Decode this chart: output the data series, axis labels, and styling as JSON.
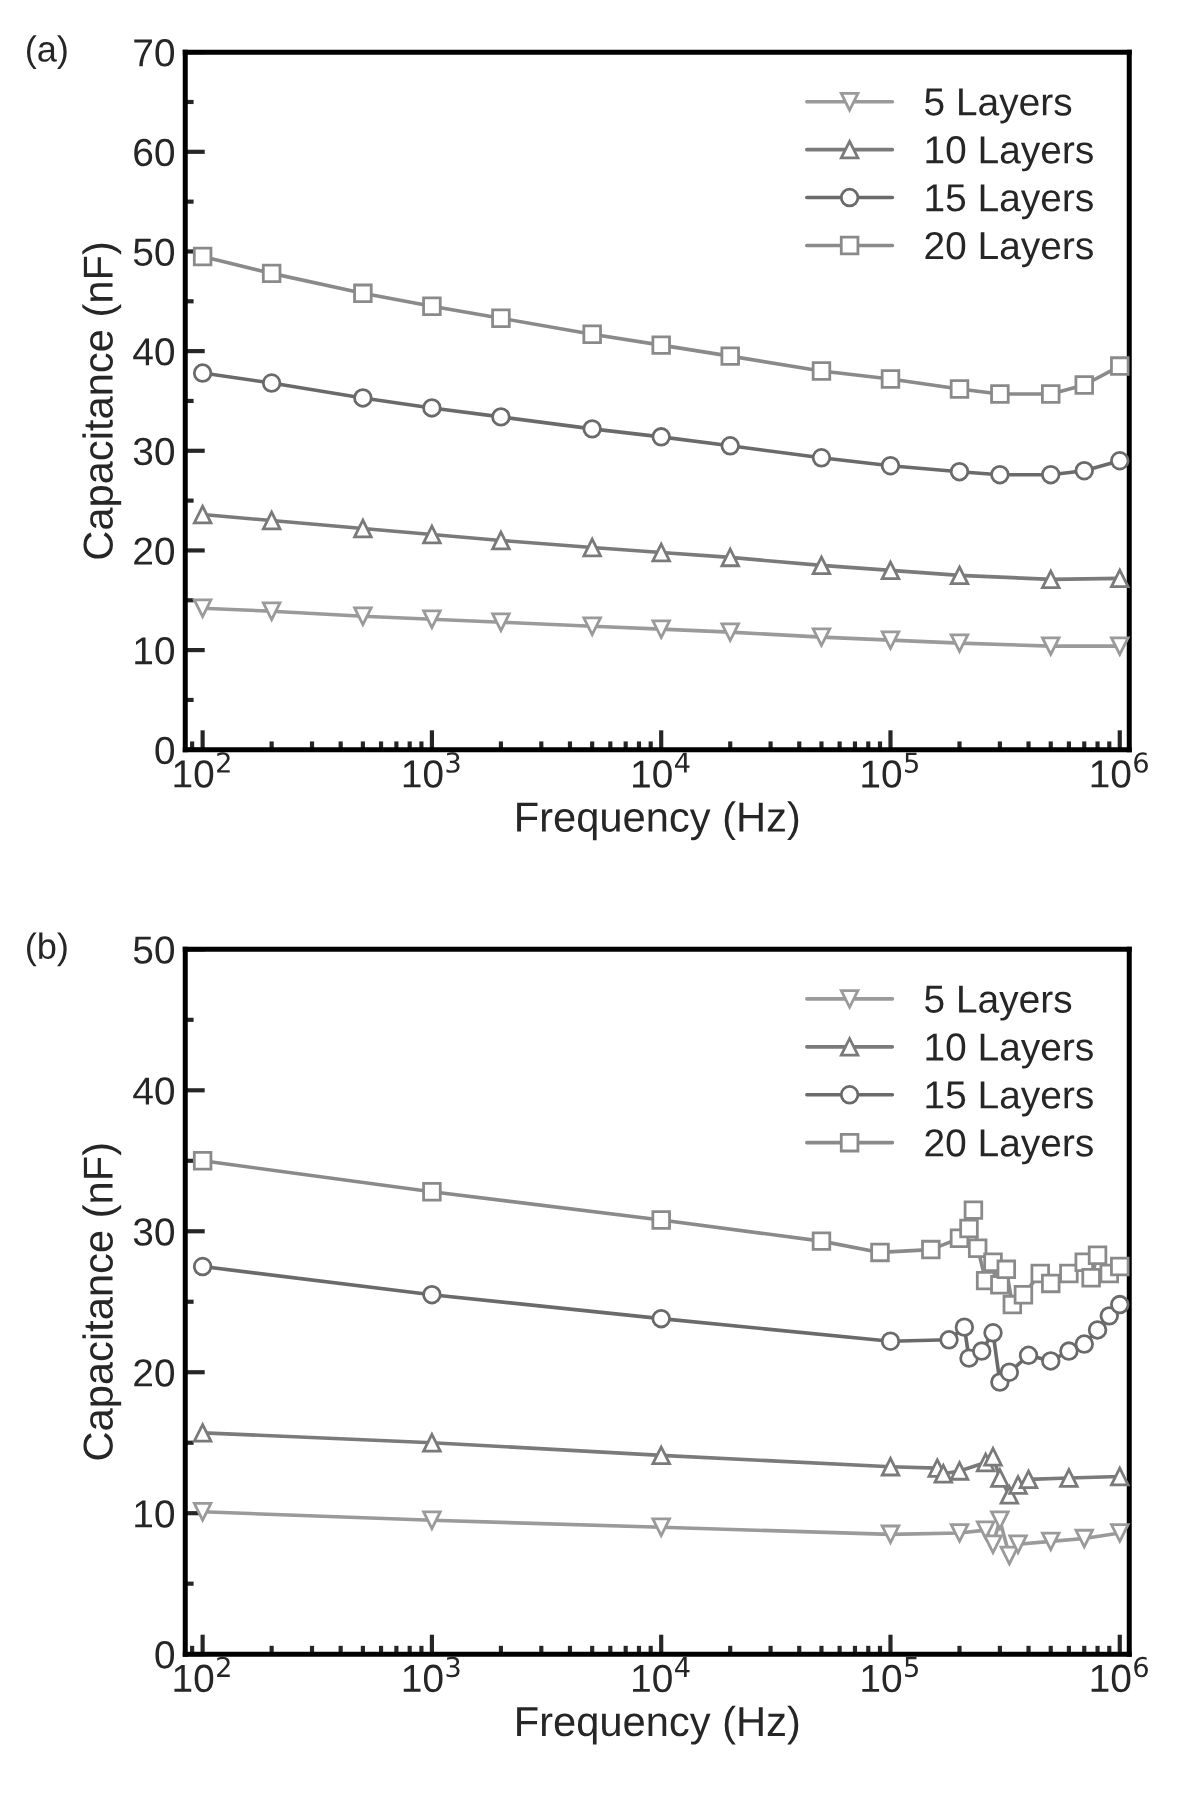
{
  "chart_data": [
    {
      "type": "line",
      "xlabel": "Frequency (Hz)",
      "ylabel": "Capacitance (nF)",
      "annotations": [
        "(a)"
      ],
      "log": "x",
      "xlim": [
        84,
        1100000
      ],
      "ylim": [
        0,
        70
      ],
      "xticks": [
        {
          "value": 100,
          "label": "10$^{2}$"
        },
        {
          "value": 1000,
          "label": "10$^{3}$"
        },
        {
          "value": 10000,
          "label": "10$^{4}$"
        },
        {
          "value": 100000,
          "label": "10$^{5}$"
        },
        {
          "value": 1000000,
          "label": "10$^{6}$"
        }
      ],
      "yticks": [
        0,
        10,
        20,
        30,
        40,
        50,
        60,
        70
      ],
      "legend": "top right",
      "grid": false,
      "series": [
        {
          "name": "5 Layers",
          "color": "#9a9a9a",
          "marker": "triangle_down",
          "x": [
            100,
            200,
            500,
            1000,
            2000,
            5000,
            10000,
            20000,
            50000,
            100000,
            200000,
            500000,
            1000000
          ],
          "values": [
            14.2,
            13.9,
            13.4,
            13.1,
            12.8,
            12.4,
            12.1,
            11.8,
            11.3,
            11,
            10.7,
            10.4,
            10.4
          ]
        },
        {
          "name": "10 Layers",
          "color": "#7a7a7a",
          "marker": "triangle",
          "x": [
            100,
            200,
            500,
            1000,
            2000,
            5000,
            10000,
            20000,
            50000,
            100000,
            200000,
            500000,
            1000000
          ],
          "values": [
            23.6,
            23,
            22.2,
            21.6,
            21,
            20.3,
            19.8,
            19.3,
            18.5,
            18,
            17.5,
            17.1,
            17.2
          ]
        },
        {
          "name": "15 Layers",
          "color": "#6a6a6a",
          "marker": "circle",
          "x": [
            100,
            200,
            500,
            1000,
            2000,
            5000,
            10000,
            20000,
            50000,
            100000,
            200000,
            300000,
            500000,
            700000,
            1000000
          ],
          "values": [
            37.8,
            36.8,
            35.3,
            34.3,
            33.4,
            32.2,
            31.4,
            30.5,
            29.3,
            28.5,
            27.9,
            27.6,
            27.6,
            28,
            29
          ]
        },
        {
          "name": "20 Layers",
          "color": "#8a8a8a",
          "marker": "square",
          "x": [
            100,
            200,
            500,
            1000,
            2000,
            5000,
            10000,
            20000,
            50000,
            100000,
            200000,
            300000,
            500000,
            700000,
            1000000
          ],
          "values": [
            49.5,
            47.8,
            45.8,
            44.5,
            43.3,
            41.7,
            40.6,
            39.5,
            38,
            37.2,
            36.2,
            35.7,
            35.7,
            36.6,
            38.5
          ]
        }
      ]
    },
    {
      "type": "line",
      "xlabel": "Frequency (Hz)",
      "ylabel": "Capacitance (nF)",
      "annotations": [
        "(b)"
      ],
      "log": "x",
      "xlim": [
        84,
        1100000
      ],
      "ylim": [
        0,
        50
      ],
      "xticks": [
        {
          "value": 100,
          "label": "10$^{2}$"
        },
        {
          "value": 1000,
          "label": "10$^{3}$"
        },
        {
          "value": 10000,
          "label": "10$^{4}$"
        },
        {
          "value": 100000,
          "label": "10$^{5}$"
        },
        {
          "value": 1000000,
          "label": "10$^{6}$"
        }
      ],
      "yticks": [
        0,
        10,
        20,
        30,
        40,
        50
      ],
      "legend": "top right",
      "grid": false,
      "series": [
        {
          "name": "5 Layers",
          "color": "#9a9a9a",
          "marker": "triangle_down",
          "x": [
            100,
            1000,
            10000,
            100000,
            200000,
            260000,
            280000,
            300000,
            330000,
            360000,
            500000,
            700000,
            1000000
          ],
          "values": [
            10.1,
            9.5,
            9,
            8.5,
            8.6,
            8.8,
            7.8,
            9.5,
            7,
            7.8,
            8,
            8.2,
            8.6
          ]
        },
        {
          "name": "10 Layers",
          "color": "#7a7a7a",
          "marker": "triangle",
          "x": [
            100,
            1000,
            10000,
            100000,
            160000,
            170000,
            200000,
            260000,
            280000,
            300000,
            330000,
            360000,
            400000,
            600000,
            1000000
          ],
          "values": [
            15.7,
            15,
            14.1,
            13.3,
            13.2,
            12.8,
            13,
            13.6,
            14,
            12.5,
            11.3,
            12,
            12.4,
            12.5,
            12.6
          ]
        },
        {
          "name": "15 Layers",
          "color": "#6a6a6a",
          "marker": "circle",
          "x": [
            100,
            1000,
            10000,
            100000,
            180000,
            210000,
            220000,
            250000,
            280000,
            300000,
            330000,
            400000,
            500000,
            600000,
            700000,
            800000,
            900000,
            1000000
          ],
          "values": [
            27.5,
            25.5,
            23.8,
            22.2,
            22.3,
            23.2,
            21,
            21.5,
            22.8,
            19.3,
            20,
            21.2,
            20.8,
            21.5,
            22,
            23,
            24,
            24.8
          ]
        },
        {
          "name": "20 Layers",
          "color": "#8a8a8a",
          "marker": "square",
          "x": [
            100,
            1000,
            10000,
            50000,
            90000,
            150000,
            200000,
            220000,
            230000,
            240000,
            260000,
            280000,
            300000,
            320000,
            340000,
            380000,
            450000,
            500000,
            600000,
            700000,
            750000,
            800000,
            900000,
            1000000
          ],
          "values": [
            35,
            32.8,
            30.8,
            29.3,
            28.5,
            28.7,
            29.5,
            30.2,
            31.5,
            28.8,
            26.5,
            27.8,
            26.2,
            27.3,
            24.8,
            25.5,
            27,
            26.3,
            27,
            27.8,
            26.7,
            28.3,
            27,
            27.5
          ]
        }
      ]
    }
  ]
}
